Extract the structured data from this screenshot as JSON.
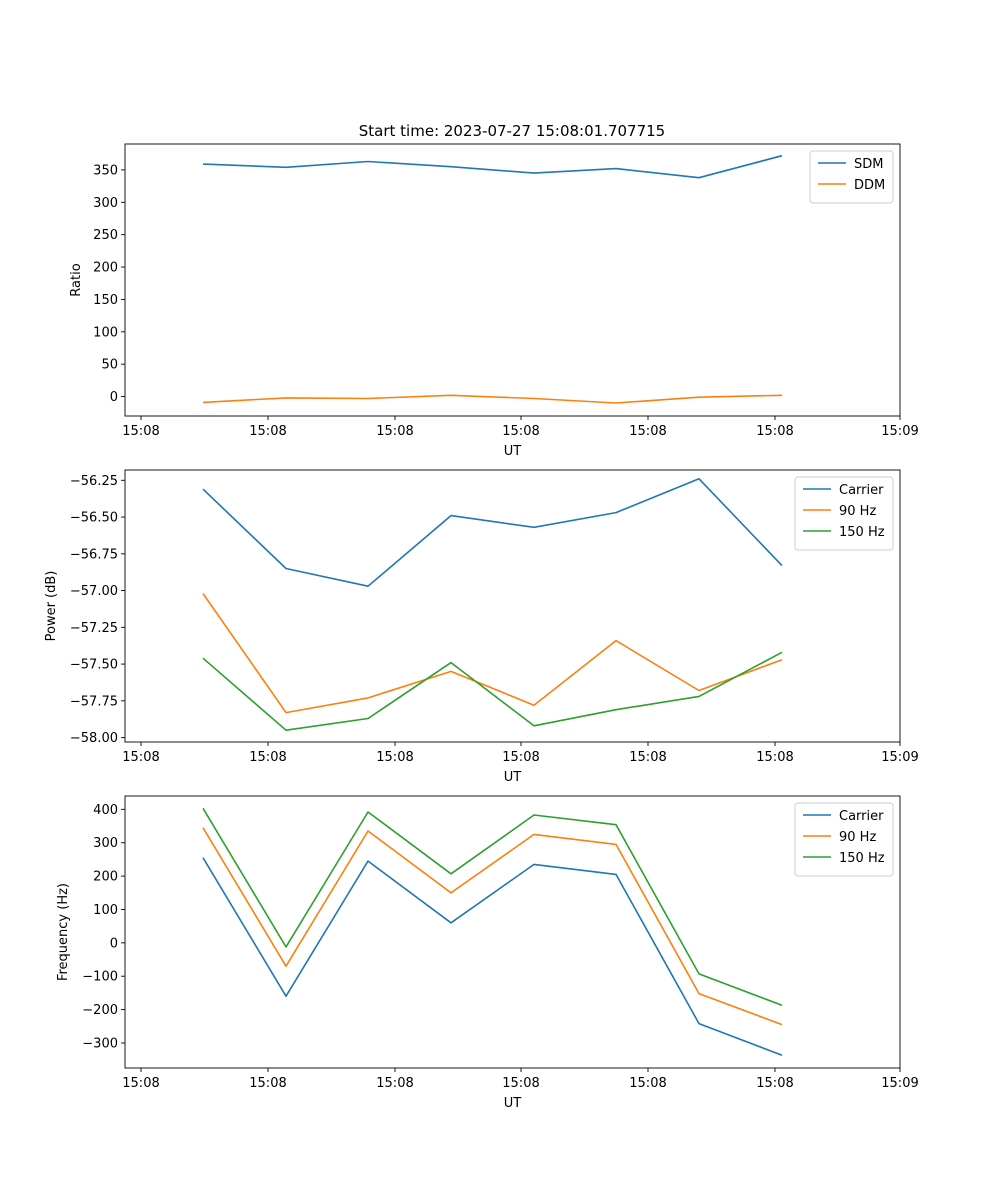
{
  "title": "Start time: 2023-07-27 15:08:01.707715",
  "chart_data": [
    {
      "type": "line",
      "xlabel": "UT",
      "ylabel": "Ratio",
      "x_tick_labels": [
        "15:08",
        "15:08",
        "15:08",
        "15:08",
        "15:08",
        "15:08",
        "15:09"
      ],
      "x_point_count": 8,
      "ylim": [
        -30,
        390
      ],
      "yticks": [
        0,
        50,
        100,
        150,
        200,
        250,
        300,
        350
      ],
      "ytick_labels": [
        "0",
        "50",
        "100",
        "150",
        "200",
        "250",
        "300",
        "350"
      ],
      "legend": "top-right",
      "series": [
        {
          "name": "SDM",
          "color": "#1f77b4",
          "values": [
            359,
            354,
            363,
            355,
            345,
            352,
            338,
            372
          ]
        },
        {
          "name": "DDM",
          "color": "#ff7f0e",
          "values": [
            -9,
            -2,
            -3,
            2,
            -3,
            -10,
            -1,
            2
          ]
        }
      ]
    },
    {
      "type": "line",
      "xlabel": "UT",
      "ylabel": "Power (dB)",
      "x_tick_labels": [
        "15:08",
        "15:08",
        "15:08",
        "15:08",
        "15:08",
        "15:08",
        "15:09"
      ],
      "x_point_count": 8,
      "ylim": [
        -58.03,
        -56.18
      ],
      "yticks": [
        -58.0,
        -57.75,
        -57.5,
        -57.25,
        -57.0,
        -56.75,
        -56.5,
        -56.25
      ],
      "ytick_labels": [
        "−58.00",
        "−57.75",
        "−57.50",
        "−57.25",
        "−57.00",
        "−56.75",
        "−56.50",
        "−56.25"
      ],
      "legend": "top-right",
      "series": [
        {
          "name": "Carrier",
          "color": "#1f77b4",
          "values": [
            -56.31,
            -56.85,
            -56.97,
            -56.49,
            -56.57,
            -56.47,
            -56.24,
            -56.83
          ]
        },
        {
          "name": "90 Hz",
          "color": "#ff7f0e",
          "values": [
            -57.02,
            -57.83,
            -57.73,
            -57.55,
            -57.78,
            -57.34,
            -57.68,
            -57.47
          ]
        },
        {
          "name": "150 Hz",
          "color": "#2ca02c",
          "values": [
            -57.46,
            -57.95,
            -57.87,
            -57.49,
            -57.92,
            -57.81,
            -57.72,
            -57.42
          ]
        }
      ]
    },
    {
      "type": "line",
      "xlabel": "UT",
      "ylabel": "Frequency (Hz)",
      "x_tick_labels": [
        "15:08",
        "15:08",
        "15:08",
        "15:08",
        "15:08",
        "15:08",
        "15:09"
      ],
      "x_point_count": 8,
      "ylim": [
        -375,
        440
      ],
      "yticks": [
        -300,
        -200,
        -100,
        0,
        100,
        200,
        300,
        400
      ],
      "ytick_labels": [
        "−300",
        "−200",
        "−100",
        "0",
        "100",
        "200",
        "300",
        "400"
      ],
      "legend": "top-right",
      "series": [
        {
          "name": "Carrier",
          "color": "#1f77b4",
          "values": [
            255,
            -160,
            245,
            60,
            235,
            205,
            -242,
            -337
          ]
        },
        {
          "name": "90 Hz",
          "color": "#ff7f0e",
          "values": [
            345,
            -70,
            335,
            150,
            325,
            295,
            -152,
            -245
          ]
        },
        {
          "name": "150 Hz",
          "color": "#2ca02c",
          "values": [
            403,
            -12,
            392,
            207,
            383,
            354,
            -93,
            -187
          ]
        }
      ]
    }
  ]
}
